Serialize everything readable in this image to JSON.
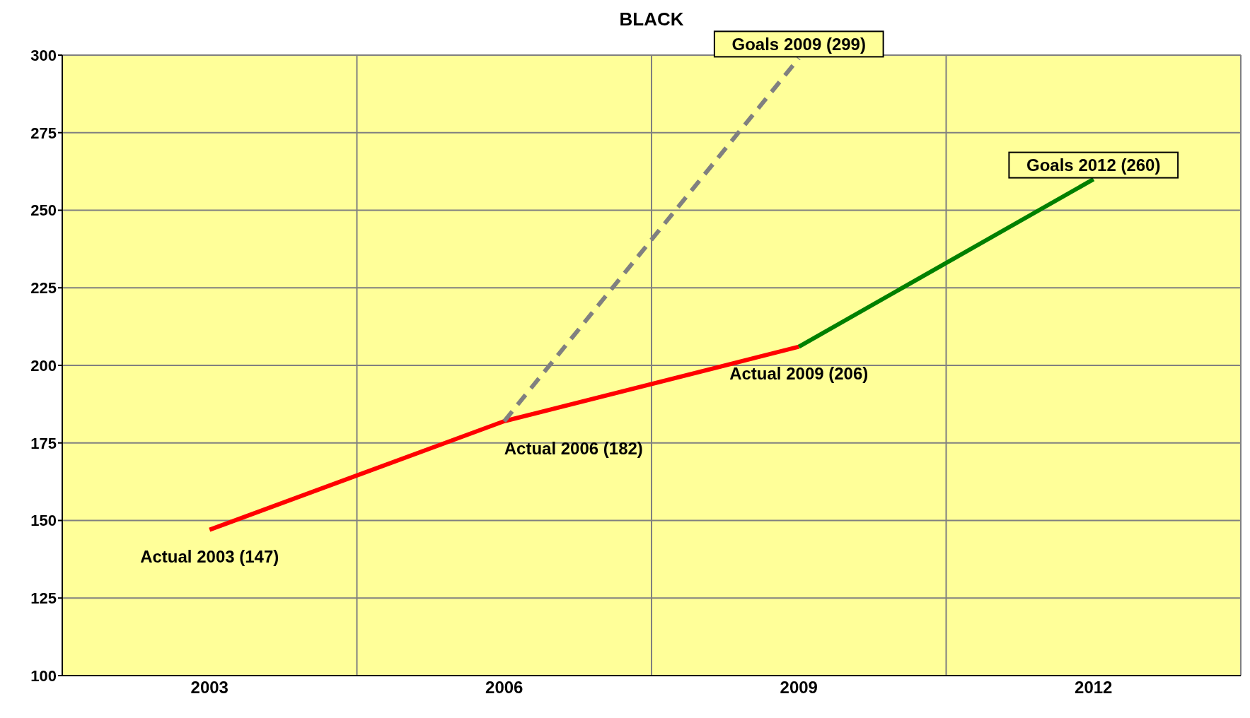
{
  "chart_data": {
    "type": "line",
    "title": "BLACK",
    "categories": [
      "2003",
      "2006",
      "2009",
      "2012"
    ],
    "series": [
      {
        "color": "#ff0000",
        "values": [
          147,
          182,
          206,
          null
        ],
        "line_style": "solid"
      },
      {
        "color": "#808080",
        "values": [
          null,
          182,
          299,
          null
        ],
        "line_style": "dashed"
      },
      {
        "color": "#008000",
        "values": [
          null,
          null,
          206,
          260
        ],
        "line_style": "solid"
      }
    ],
    "ylim": [
      100,
      300
    ],
    "yticks": [
      100,
      125,
      150,
      175,
      200,
      225,
      250,
      275,
      300
    ],
    "grid": true,
    "legend": false,
    "marker": "none",
    "annotations": [
      {
        "text": "Actual 2003 (147)",
        "x": "2003",
        "y": 147
      },
      {
        "text": "Actual 2006 (182)",
        "x": "2006",
        "y": 182
      },
      {
        "text": "Actual 2009 (206)",
        "x": "2009",
        "y": 206
      },
      {
        "text": "Goals 2009 (299)",
        "x": "2009",
        "y": 299
      },
      {
        "text": "Goals 2012 (260)",
        "x": "2012",
        "y": 260
      }
    ]
  }
}
